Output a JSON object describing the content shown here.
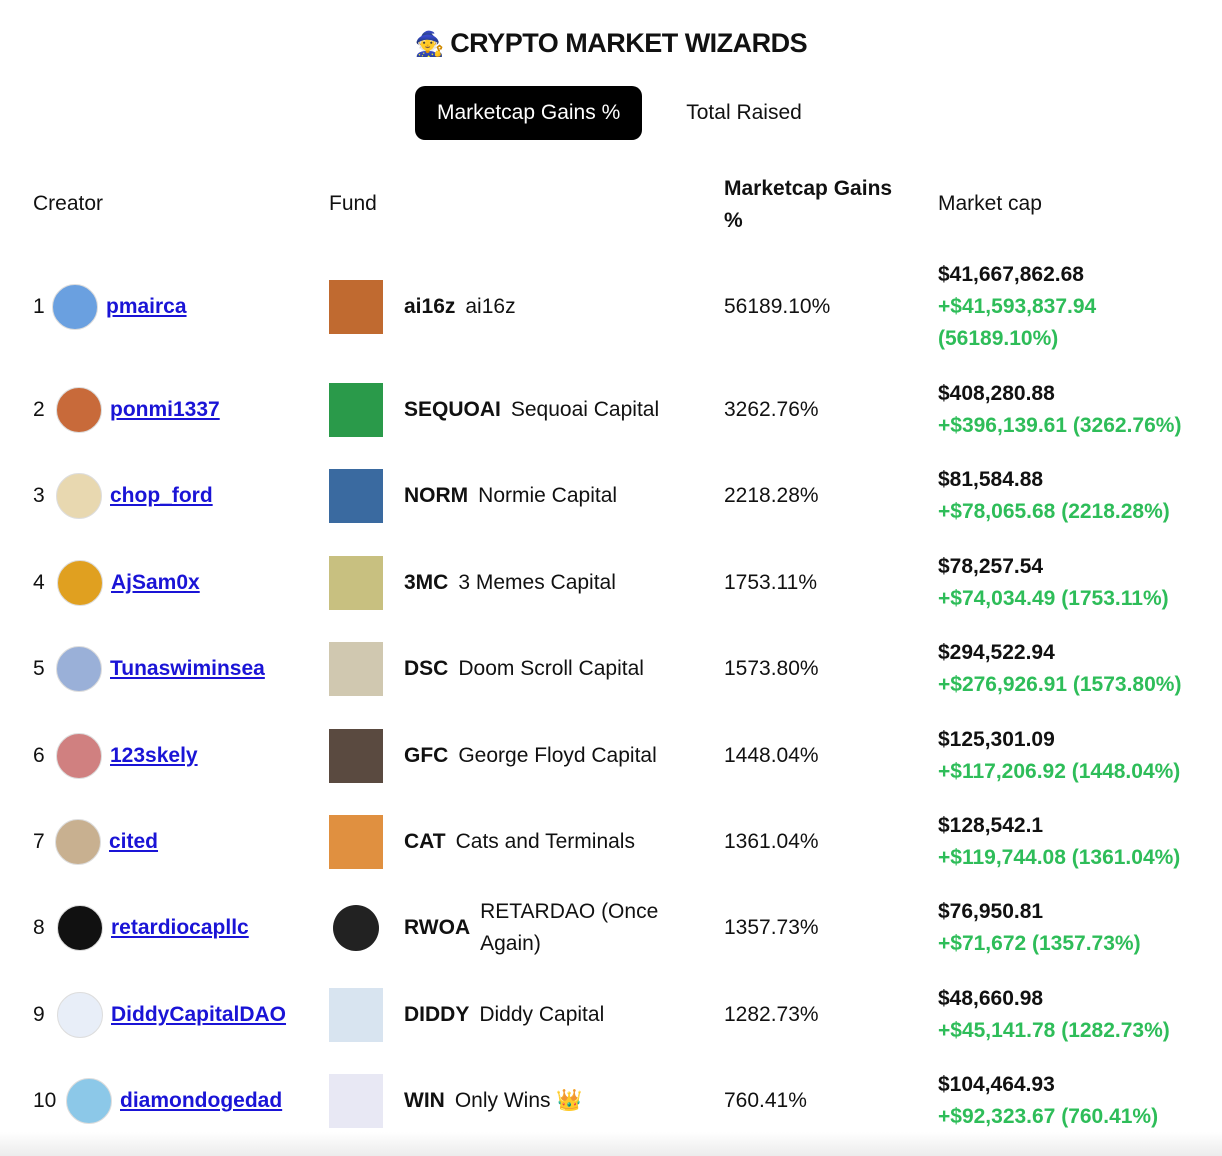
{
  "header": {
    "title": "CRYPTO MARKET WIZARDS",
    "title_icon": "wizard-hat-icon"
  },
  "tabs": [
    {
      "label": "Marketcap Gains %",
      "active": true
    },
    {
      "label": "Total Raised",
      "active": false
    }
  ],
  "columns": {
    "creator": "Creator",
    "fund": "Fund",
    "gains": "Marketcap Gains %",
    "market_cap": "Market cap"
  },
  "colors": {
    "gain_green": "#2ebd59",
    "link_blue": "#1a14d6",
    "active_tab": "#000000"
  },
  "rows": [
    {
      "rank": "1",
      "creator": "pmairca",
      "ticker": "ai16z",
      "fund": "ai16z",
      "gains": "56189.10%",
      "market_cap": "$41,667,862.68",
      "change": "+$41,593,837.94 (56189.10%)"
    },
    {
      "rank": "2",
      "creator": "ponmi1337",
      "ticker": "SEQUOAI",
      "fund": "Sequoai Capital",
      "gains": "3262.76%",
      "market_cap": "$408,280.88",
      "change": "+$396,139.61 (3262.76%)"
    },
    {
      "rank": "3",
      "creator": "chop_ford",
      "ticker": "NORM",
      "fund": "Normie Capital",
      "gains": "2218.28%",
      "market_cap": "$81,584.88",
      "change": "+$78,065.68 (2218.28%)"
    },
    {
      "rank": "4",
      "creator": "AjSam0x",
      "ticker": "3MC",
      "fund": "3 Memes Capital",
      "gains": "1753.11%",
      "market_cap": "$78,257.54",
      "change": "+$74,034.49 (1753.11%)"
    },
    {
      "rank": "5",
      "creator": "Tunaswiminsea",
      "ticker": "DSC",
      "fund": "Doom Scroll Capital",
      "gains": "1573.80%",
      "market_cap": "$294,522.94",
      "change": "+$276,926.91 (1573.80%)"
    },
    {
      "rank": "6",
      "creator": "123skely",
      "ticker": "GFC",
      "fund": "George Floyd Capital",
      "gains": "1448.04%",
      "market_cap": "$125,301.09",
      "change": "+$117,206.92 (1448.04%)"
    },
    {
      "rank": "7",
      "creator": "cited",
      "ticker": "CAT",
      "fund": "Cats and Terminals",
      "gains": "1361.04%",
      "market_cap": "$128,542.1",
      "change": "+$119,744.08 (1361.04%)"
    },
    {
      "rank": "8",
      "creator": "retardiocapllc",
      "ticker": "RWOA",
      "fund": "RETARDAO (Once Again)",
      "gains": "1357.73%",
      "market_cap": "$76,950.81",
      "change": "+$71,672 (1357.73%)"
    },
    {
      "rank": "9",
      "creator": "DiddyCapitalDAO",
      "ticker": "DIDDY",
      "fund": "Diddy Capital",
      "gains": "1282.73%",
      "market_cap": "$48,660.98",
      "change": "+$45,141.78 (1282.73%)"
    },
    {
      "rank": "10",
      "creator": "diamondogedad",
      "ticker": "WIN",
      "fund": "Only Wins 👑",
      "gains": "760.41%",
      "market_cap": "$104,464.93",
      "change": "+$92,323.67 (760.41%)"
    }
  ]
}
